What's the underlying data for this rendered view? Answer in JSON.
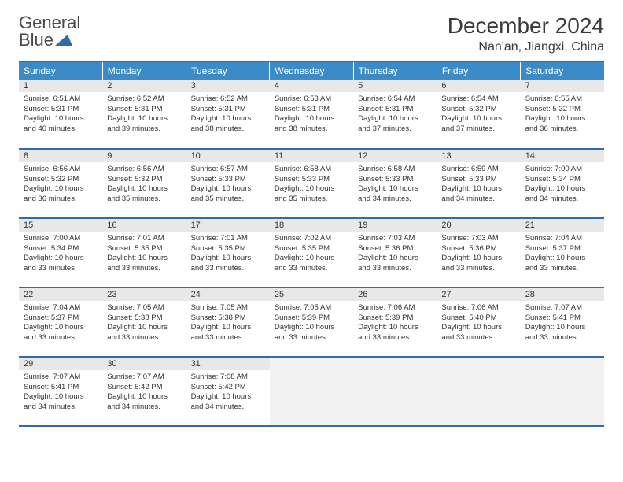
{
  "brand": {
    "line1": "General",
    "line2": "Blue",
    "logo_color": "#2f6da8",
    "text_color_gray": "#4a4a4a"
  },
  "title": "December 2024",
  "location": "Nan'an, Jiangxi, China",
  "colors": {
    "header_bg": "#3b8bc9",
    "border": "#2f6da8",
    "daynum_bg": "#e8e8e8",
    "empty_bg": "#f2f2f2",
    "text": "#333333",
    "white": "#ffffff"
  },
  "typography": {
    "title_fontsize": 28,
    "location_fontsize": 16,
    "weekday_fontsize": 12,
    "daynum_fontsize": 11,
    "body_fontsize": 9.5
  },
  "weekdays": [
    "Sunday",
    "Monday",
    "Tuesday",
    "Wednesday",
    "Thursday",
    "Friday",
    "Saturday"
  ],
  "weeks": [
    [
      {
        "day": "1",
        "sunrise": "6:51 AM",
        "sunset": "5:31 PM",
        "daylight": "10 hours and 40 minutes."
      },
      {
        "day": "2",
        "sunrise": "6:52 AM",
        "sunset": "5:31 PM",
        "daylight": "10 hours and 39 minutes."
      },
      {
        "day": "3",
        "sunrise": "6:52 AM",
        "sunset": "5:31 PM",
        "daylight": "10 hours and 38 minutes."
      },
      {
        "day": "4",
        "sunrise": "6:53 AM",
        "sunset": "5:31 PM",
        "daylight": "10 hours and 38 minutes."
      },
      {
        "day": "5",
        "sunrise": "6:54 AM",
        "sunset": "5:31 PM",
        "daylight": "10 hours and 37 minutes."
      },
      {
        "day": "6",
        "sunrise": "6:54 AM",
        "sunset": "5:32 PM",
        "daylight": "10 hours and 37 minutes."
      },
      {
        "day": "7",
        "sunrise": "6:55 AM",
        "sunset": "5:32 PM",
        "daylight": "10 hours and 36 minutes."
      }
    ],
    [
      {
        "day": "8",
        "sunrise": "6:56 AM",
        "sunset": "5:32 PM",
        "daylight": "10 hours and 36 minutes."
      },
      {
        "day": "9",
        "sunrise": "6:56 AM",
        "sunset": "5:32 PM",
        "daylight": "10 hours and 35 minutes."
      },
      {
        "day": "10",
        "sunrise": "6:57 AM",
        "sunset": "5:33 PM",
        "daylight": "10 hours and 35 minutes."
      },
      {
        "day": "11",
        "sunrise": "6:58 AM",
        "sunset": "5:33 PM",
        "daylight": "10 hours and 35 minutes."
      },
      {
        "day": "12",
        "sunrise": "6:58 AM",
        "sunset": "5:33 PM",
        "daylight": "10 hours and 34 minutes."
      },
      {
        "day": "13",
        "sunrise": "6:59 AM",
        "sunset": "5:33 PM",
        "daylight": "10 hours and 34 minutes."
      },
      {
        "day": "14",
        "sunrise": "7:00 AM",
        "sunset": "5:34 PM",
        "daylight": "10 hours and 34 minutes."
      }
    ],
    [
      {
        "day": "15",
        "sunrise": "7:00 AM",
        "sunset": "5:34 PM",
        "daylight": "10 hours and 33 minutes."
      },
      {
        "day": "16",
        "sunrise": "7:01 AM",
        "sunset": "5:35 PM",
        "daylight": "10 hours and 33 minutes."
      },
      {
        "day": "17",
        "sunrise": "7:01 AM",
        "sunset": "5:35 PM",
        "daylight": "10 hours and 33 minutes."
      },
      {
        "day": "18",
        "sunrise": "7:02 AM",
        "sunset": "5:35 PM",
        "daylight": "10 hours and 33 minutes."
      },
      {
        "day": "19",
        "sunrise": "7:03 AM",
        "sunset": "5:36 PM",
        "daylight": "10 hours and 33 minutes."
      },
      {
        "day": "20",
        "sunrise": "7:03 AM",
        "sunset": "5:36 PM",
        "daylight": "10 hours and 33 minutes."
      },
      {
        "day": "21",
        "sunrise": "7:04 AM",
        "sunset": "5:37 PM",
        "daylight": "10 hours and 33 minutes."
      }
    ],
    [
      {
        "day": "22",
        "sunrise": "7:04 AM",
        "sunset": "5:37 PM",
        "daylight": "10 hours and 33 minutes."
      },
      {
        "day": "23",
        "sunrise": "7:05 AM",
        "sunset": "5:38 PM",
        "daylight": "10 hours and 33 minutes."
      },
      {
        "day": "24",
        "sunrise": "7:05 AM",
        "sunset": "5:38 PM",
        "daylight": "10 hours and 33 minutes."
      },
      {
        "day": "25",
        "sunrise": "7:05 AM",
        "sunset": "5:39 PM",
        "daylight": "10 hours and 33 minutes."
      },
      {
        "day": "26",
        "sunrise": "7:06 AM",
        "sunset": "5:39 PM",
        "daylight": "10 hours and 33 minutes."
      },
      {
        "day": "27",
        "sunrise": "7:06 AM",
        "sunset": "5:40 PM",
        "daylight": "10 hours and 33 minutes."
      },
      {
        "day": "28",
        "sunrise": "7:07 AM",
        "sunset": "5:41 PM",
        "daylight": "10 hours and 33 minutes."
      }
    ],
    [
      {
        "day": "29",
        "sunrise": "7:07 AM",
        "sunset": "5:41 PM",
        "daylight": "10 hours and 34 minutes."
      },
      {
        "day": "30",
        "sunrise": "7:07 AM",
        "sunset": "5:42 PM",
        "daylight": "10 hours and 34 minutes."
      },
      {
        "day": "31",
        "sunrise": "7:08 AM",
        "sunset": "5:42 PM",
        "daylight": "10 hours and 34 minutes."
      },
      null,
      null,
      null,
      null
    ]
  ],
  "labels": {
    "sunrise": "Sunrise:",
    "sunset": "Sunset:",
    "daylight": "Daylight:"
  }
}
